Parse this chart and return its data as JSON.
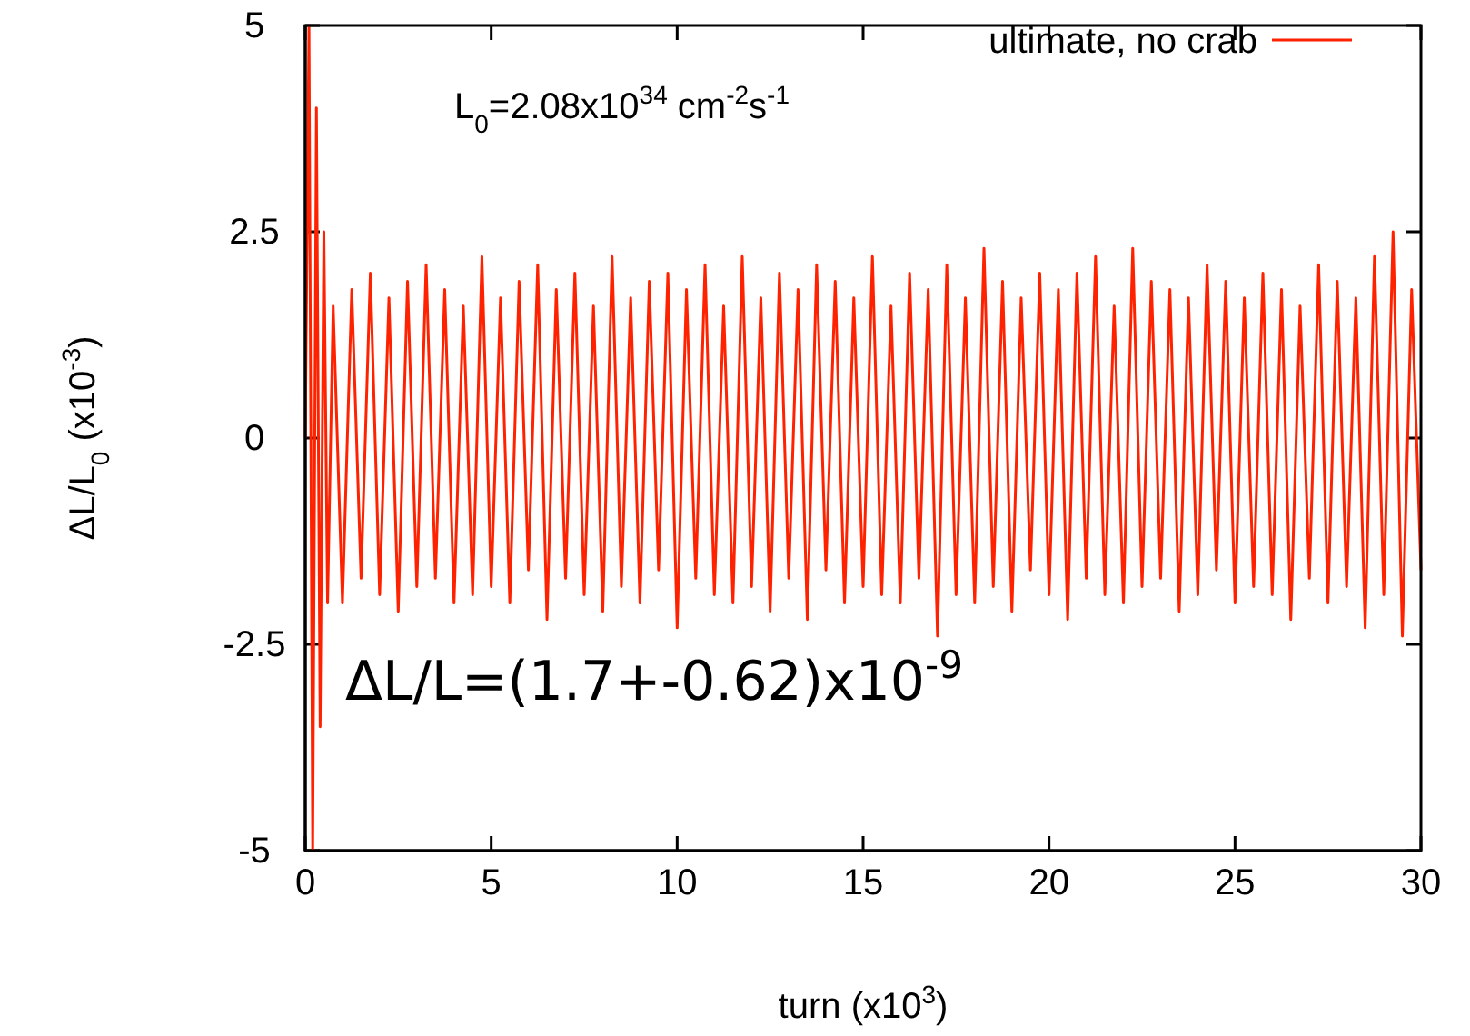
{
  "chart_data": {
    "type": "line",
    "xlabel": "turn (x10$^{3}$)",
    "ylabel": "ΔL/L$_{0}$ (x10$^{-3}$)",
    "xlim": [
      0,
      30
    ],
    "ylim": [
      -5,
      5
    ],
    "xticks": [
      0,
      5,
      10,
      15,
      20,
      25,
      30
    ],
    "yticks": [
      -5,
      -2.5,
      0,
      2.5,
      5
    ],
    "grid": false,
    "legend": "top right",
    "marker": "none",
    "line_style": "solid",
    "annotations": [
      "L$_{0}$=2.08x10$^{34}$ cm$^{-2}$s$^{-1}$",
      "ΔL/L=(1.7+-0.62)x10$^{-9}$"
    ],
    "series": [
      {
        "name": "ultimate, no crab",
        "color": "#ff2200",
        "x": [
          0,
          0.1,
          0.2,
          0.3,
          0.4,
          0.5,
          0.6,
          0.75,
          1,
          1.25,
          1.5,
          1.75,
          2,
          2.25,
          2.5,
          2.75,
          3,
          3.25,
          3.5,
          3.75,
          4,
          4.25,
          4.5,
          4.75,
          5,
          5.25,
          5.5,
          5.75,
          6,
          6.25,
          6.5,
          6.75,
          7,
          7.25,
          7.5,
          7.75,
          8,
          8.25,
          8.5,
          8.75,
          9,
          9.25,
          9.5,
          9.75,
          10,
          10.25,
          10.5,
          10.75,
          11,
          11.25,
          11.5,
          11.75,
          12,
          12.25,
          12.5,
          12.75,
          13,
          13.25,
          13.5,
          13.75,
          14,
          14.25,
          14.5,
          14.75,
          15,
          15.25,
          15.5,
          15.75,
          16,
          16.25,
          16.5,
          16.75,
          17,
          17.25,
          17.5,
          17.75,
          18,
          18.25,
          18.5,
          18.75,
          19,
          19.25,
          19.5,
          19.75,
          20,
          20.25,
          20.5,
          20.75,
          21,
          21.25,
          21.5,
          21.75,
          22,
          22.25,
          22.5,
          22.75,
          23,
          23.25,
          23.5,
          23.75,
          24,
          24.25,
          24.5,
          24.75,
          25,
          25.25,
          25.5,
          25.75,
          26,
          26.25,
          26.5,
          26.75,
          27,
          27.25,
          27.5,
          27.75,
          28,
          28.25,
          28.5,
          28.75,
          29,
          29.25,
          29.5,
          29.75,
          30
        ],
        "values": [
          0,
          5,
          -5,
          4,
          -3.5,
          2.5,
          -2,
          1.6,
          -2.0,
          1.8,
          -1.7,
          2.0,
          -1.9,
          1.7,
          -2.1,
          1.9,
          -1.8,
          2.1,
          -1.7,
          1.8,
          -2.0,
          1.6,
          -1.9,
          2.2,
          -1.8,
          1.7,
          -2.0,
          1.9,
          -1.6,
          2.1,
          -2.2,
          1.8,
          -1.7,
          2.0,
          -1.9,
          1.6,
          -2.1,
          2.2,
          -1.8,
          1.7,
          -2.0,
          1.9,
          -1.6,
          2.0,
          -2.3,
          1.8,
          -1.7,
          2.1,
          -1.9,
          1.6,
          -2.0,
          2.2,
          -1.8,
          1.7,
          -2.1,
          2.0,
          -1.7,
          1.8,
          -2.2,
          2.1,
          -1.6,
          1.9,
          -2.0,
          1.7,
          -1.8,
          2.2,
          -1.9,
          1.6,
          -2.0,
          2.0,
          -1.7,
          1.8,
          -2.4,
          2.1,
          -1.9,
          1.7,
          -2.0,
          2.3,
          -1.8,
          1.9,
          -2.1,
          1.7,
          -1.6,
          2.0,
          -1.9,
          1.8,
          -2.2,
          2.0,
          -1.7,
          2.2,
          -1.9,
          1.6,
          -2.0,
          2.3,
          -1.8,
          1.9,
          -1.7,
          1.8,
          -2.1,
          1.7,
          -1.9,
          2.1,
          -1.6,
          1.9,
          -2.0,
          1.7,
          -1.8,
          2.0,
          -1.9,
          1.8,
          -2.2,
          1.6,
          -1.7,
          2.1,
          -2.0,
          1.9,
          -1.8,
          1.7,
          -2.3,
          2.2,
          -1.9,
          2.5,
          -2.4,
          1.8,
          -1.6
        ]
      }
    ]
  }
}
